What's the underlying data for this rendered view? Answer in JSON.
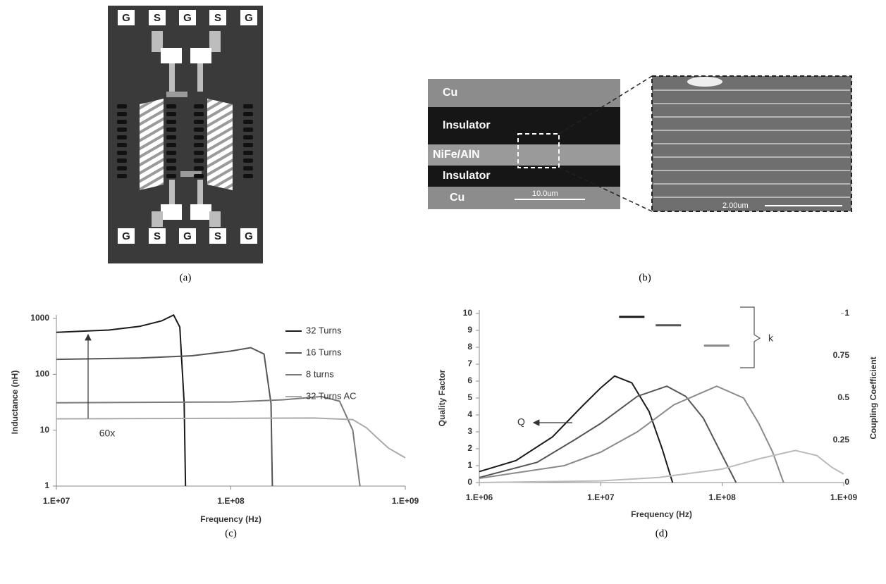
{
  "panels": {
    "a": {
      "pads_top": [
        "G",
        "S",
        "G",
        "S",
        "G"
      ],
      "pads_bottom": [
        "G",
        "S",
        "G",
        "S",
        "G"
      ],
      "caption": "(a)"
    },
    "b": {
      "layers": [
        "Cu",
        "Insulator",
        "NiFe/AlN",
        "Insulator",
        "Cu"
      ],
      "scale_bar": "10.0um",
      "zoom_scale_bar": "2.00um",
      "caption": "(b)"
    }
  },
  "chart_data": [
    {
      "type": "line",
      "caption": "(c)",
      "xlabel": "Frequency (Hz)",
      "ylabel": "Inductance (nH)",
      "xscale": "log",
      "yscale": "log",
      "xlim": [
        10000000,
        1000000000
      ],
      "ylim": [
        1,
        1000
      ],
      "xticks": [
        {
          "value": 10000000,
          "label": "1.E+07"
        },
        {
          "value": 100000000,
          "label": "1.E+08"
        },
        {
          "value": 1000000000,
          "label": "1.E+09"
        }
      ],
      "yticks": [
        1,
        10,
        100,
        1000
      ],
      "legend": "right",
      "annotations": [
        "60x"
      ],
      "series": [
        {
          "name": "32 Turns",
          "color": "#1a1a1a",
          "x": [
            10000000,
            20000000,
            30000000,
            40000000,
            47000000,
            51000000,
            54000000,
            55000000
          ],
          "values": [
            565,
            620,
            720,
            900,
            1150,
            700,
            30,
            1
          ]
        },
        {
          "name": "16 Turns",
          "color": "#555555",
          "x": [
            10000000,
            30000000,
            60000000,
            100000000,
            130000000,
            155000000,
            170000000,
            173000000
          ],
          "values": [
            185,
            195,
            215,
            260,
            300,
            230,
            30,
            1
          ]
        },
        {
          "name": "8 turns",
          "color": "#7a7a7a",
          "x": [
            10000000,
            100000000,
            200000000,
            330000000,
            420000000,
            500000000,
            550000000
          ],
          "values": [
            31,
            32,
            35,
            40,
            33,
            10,
            1
          ]
        },
        {
          "name": "32 Turns AC",
          "color": "#aaaaaa",
          "x": [
            10000000,
            300000000,
            500000000,
            600000000,
            700000000,
            800000000,
            1000000000
          ],
          "values": [
            16,
            16.5,
            15.5,
            11,
            7,
            4.8,
            3.2
          ]
        }
      ]
    },
    {
      "type": "line",
      "caption": "(d)",
      "xlabel": "Frequency (Hz)",
      "ylabel": "Quality Factor",
      "y2label": "Coupling Coefficient",
      "xscale": "log",
      "yscale": "linear",
      "xlim": [
        1000000,
        1000000000
      ],
      "ylim": [
        0,
        10
      ],
      "y2lim": [
        0,
        1
      ],
      "xticks": [
        {
          "value": 1000000,
          "label": "1.E+06"
        },
        {
          "value": 10000000,
          "label": "1.E+07"
        },
        {
          "value": 100000000,
          "label": "1.E+08"
        },
        {
          "value": 1000000000,
          "label": "1.E+09"
        }
      ],
      "yticks": [
        0,
        1,
        2,
        3,
        4,
        5,
        6,
        7,
        8,
        9,
        10
      ],
      "y2ticks": [
        0,
        0.25,
        0.5,
        0.75,
        1
      ],
      "annotations": [
        "Q",
        "k"
      ],
      "series": [
        {
          "color": "#1a1a1a",
          "x": [
            1000000,
            2000000,
            4000000,
            7000000,
            10000000,
            13000000,
            18000000,
            25000000,
            32000000,
            39000000
          ],
          "values": [
            0.65,
            1.3,
            2.7,
            4.5,
            5.6,
            6.3,
            5.9,
            4.2,
            2,
            0
          ]
        },
        {
          "color": "#555555",
          "x": [
            1000000,
            3000000,
            6000000,
            10000000,
            20000000,
            35000000,
            50000000,
            70000000,
            100000000,
            130000000
          ],
          "values": [
            0.3,
            1.2,
            2.5,
            3.5,
            5.1,
            5.7,
            5.1,
            3.8,
            1.6,
            0
          ]
        },
        {
          "color": "#8a8a8a",
          "x": [
            1000000,
            5000000,
            10000000,
            20000000,
            40000000,
            90000000,
            150000000,
            200000000,
            260000000,
            320000000
          ],
          "values": [
            0.25,
            1,
            1.8,
            3,
            4.6,
            5.7,
            5,
            3.5,
            1.8,
            0
          ]
        },
        {
          "color": "#bbbbbb",
          "x": [
            1000000,
            10000000,
            30000000,
            100000000,
            200000000,
            400000000,
            600000000,
            800000000,
            1000000000
          ],
          "values": [
            0,
            0.1,
            0.3,
            0.8,
            1.4,
            1.9,
            1.6,
            0.9,
            0.5
          ]
        },
        {
          "color": "#1a1a1a",
          "axis": "y2",
          "marker": "dash",
          "x": [
            18000000
          ],
          "values": [
            0.98
          ]
        },
        {
          "color": "#555555",
          "axis": "y2",
          "marker": "dash",
          "x": [
            36000000
          ],
          "values": [
            0.93
          ]
        },
        {
          "color": "#8a8a8a",
          "axis": "y2",
          "marker": "dash",
          "x": [
            90000000
          ],
          "values": [
            0.81
          ]
        }
      ]
    }
  ]
}
